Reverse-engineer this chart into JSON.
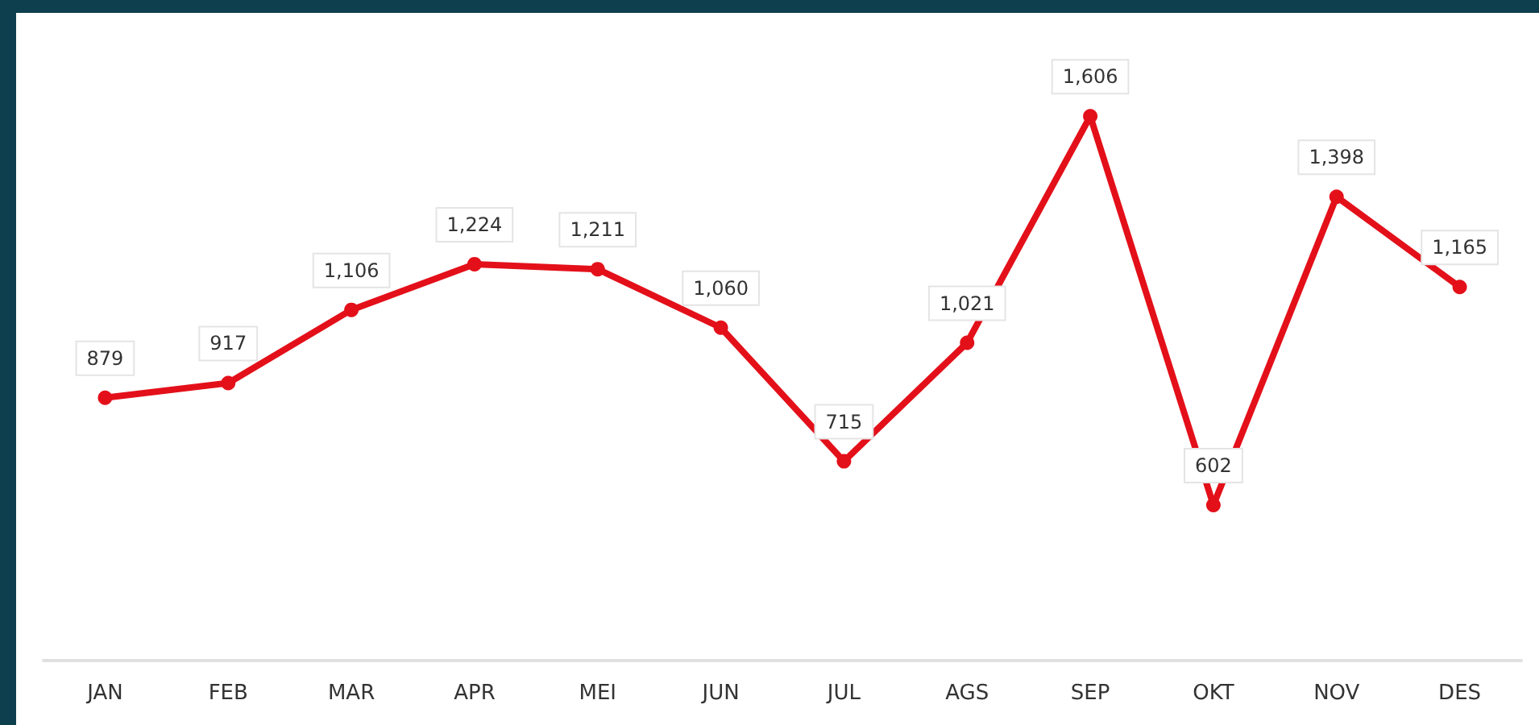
{
  "chart_data": {
    "type": "line",
    "categories": [
      "JAN",
      "FEB",
      "MAR",
      "APR",
      "MEI",
      "JUN",
      "JUL",
      "AGS",
      "SEP",
      "OKT",
      "NOV",
      "DES"
    ],
    "series": [
      {
        "color": "#e3101a",
        "values": [
          879,
          917,
          1106,
          1224,
          1211,
          1060,
          715,
          1021,
          1606,
          602,
          1398,
          1165
        ],
        "value_labels": [
          "879",
          "917",
          "1,106",
          "1,224",
          "1,211",
          "1,060",
          "715",
          "1,021",
          "1,606",
          "602",
          "1,398",
          "1,165"
        ]
      }
    ],
    "marker": "circle",
    "line_style": "solid",
    "grid": false
  }
}
